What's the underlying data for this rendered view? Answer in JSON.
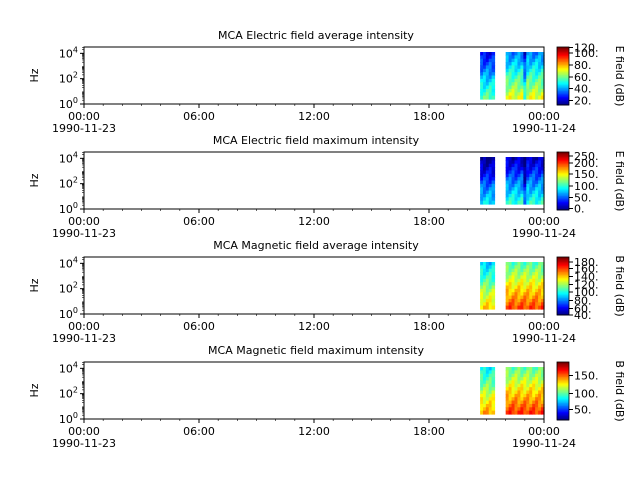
{
  "chart_data": [
    {
      "type": "heatmap",
      "title": "MCA  Electric field average intensity",
      "ylabel": "Hz",
      "yscale": "log",
      "yticks": [
        "10^0",
        "10^2",
        "10^4"
      ],
      "ylim": [
        1,
        31623
      ],
      "x_ticks": [
        "00:00",
        "06:00",
        "12:00",
        "18:00",
        "00:00"
      ],
      "x_dates": [
        "1990-11-23",
        "1990-11-24"
      ],
      "xlim": [
        "1990-11-23 00:00",
        "1990-11-24 00:00"
      ],
      "colorbar_label": "E field (dB)",
      "colorbar_ticks": [
        "20.",
        "40.",
        "60.",
        "80.",
        "100.",
        "120."
      ],
      "colorbar_range": [
        12,
        125
      ],
      "data_blocks": [
        {
          "start": "1990-11-23 20:40",
          "end": "1990-11-23 21:25",
          "typical_db": 45
        },
        {
          "start": "1990-11-23 22:00",
          "end": "1990-11-24 00:00",
          "typical_db": 60
        }
      ]
    },
    {
      "type": "heatmap",
      "title": "MCA  Electric field maximum intensity",
      "ylabel": "Hz",
      "yscale": "log",
      "yticks": [
        "10^0",
        "10^2",
        "10^4"
      ],
      "ylim": [
        1,
        31623
      ],
      "x_ticks": [
        "00:00",
        "06:00",
        "12:00",
        "18:00",
        "00:00"
      ],
      "x_dates": [
        "1990-11-23",
        "1990-11-24"
      ],
      "xlim": [
        "1990-11-23 00:00",
        "1990-11-24 00:00"
      ],
      "colorbar_label": "E field (dB)",
      "colorbar_ticks": [
        "0.",
        "50.",
        "100.",
        "150.",
        "200.",
        "250."
      ],
      "colorbar_range": [
        -10,
        265
      ],
      "data_blocks": [
        {
          "start": "1990-11-23 20:40",
          "end": "1990-11-23 21:25",
          "typical_db": 40
        },
        {
          "start": "1990-11-23 22:00",
          "end": "1990-11-24 00:00",
          "typical_db": 55
        }
      ]
    },
    {
      "type": "heatmap",
      "title": "MCA  Magnetic field average intensity",
      "ylabel": "Hz",
      "yscale": "log",
      "yticks": [
        "10^0",
        "10^2",
        "10^4"
      ],
      "ylim": [
        1,
        31623
      ],
      "x_ticks": [
        "00:00",
        "06:00",
        "12:00",
        "18:00",
        "00:00"
      ],
      "x_dates": [
        "1990-11-23",
        "1990-11-24"
      ],
      "xlim": [
        "1990-11-23 00:00",
        "1990-11-24 00:00"
      ],
      "colorbar_label": "B field (dB)",
      "colorbar_ticks": [
        "40.",
        "60.",
        "80.",
        "100.",
        "120.",
        "140.",
        "160.",
        "180."
      ],
      "colorbar_range": [
        36,
        185
      ],
      "data_blocks": [
        {
          "start": "1990-11-23 20:40",
          "end": "1990-11-23 21:25",
          "typical_db": 110
        },
        {
          "start": "1990-11-23 22:00",
          "end": "1990-11-24 00:00",
          "typical_db": 130
        }
      ]
    },
    {
      "type": "heatmap",
      "title": "MCA  Magnetic field maximum intensity",
      "ylabel": "Hz",
      "yscale": "log",
      "yticks": [
        "10^0",
        "10^2",
        "10^4"
      ],
      "ylim": [
        1,
        31623
      ],
      "x_ticks": [
        "00:00",
        "06:00",
        "12:00",
        "18:00",
        "00:00"
      ],
      "x_dates": [
        "1990-11-23",
        "1990-11-24"
      ],
      "xlim": [
        "1990-11-23 00:00",
        "1990-11-24 00:00"
      ],
      "colorbar_label": "B field (dB)",
      "colorbar_ticks": [
        "50.",
        "100.",
        "150."
      ],
      "colorbar_range": [
        10,
        195
      ],
      "data_blocks": [
        {
          "start": "1990-11-23 20:40",
          "end": "1990-11-23 21:25",
          "typical_db": 110
        },
        {
          "start": "1990-11-23 22:00",
          "end": "1990-11-24 00:00",
          "typical_db": 130
        }
      ]
    }
  ]
}
